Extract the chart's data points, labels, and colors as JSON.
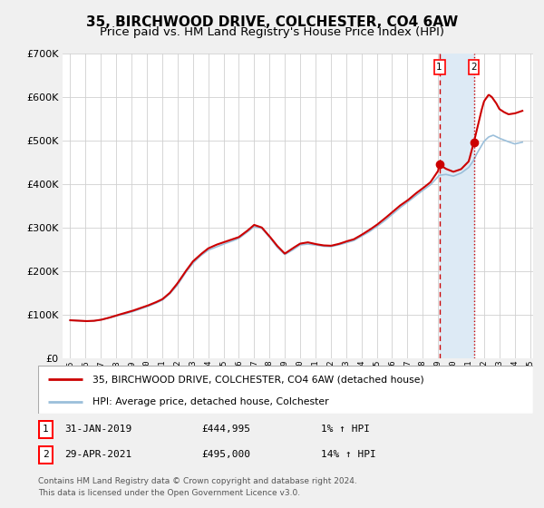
{
  "title": "35, BIRCHWOOD DRIVE, COLCHESTER, CO4 6AW",
  "subtitle": "Price paid vs. HM Land Registry's House Price Index (HPI)",
  "ylim": [
    0,
    700000
  ],
  "xlim": [
    1994.5,
    2025.2
  ],
  "yticks": [
    0,
    100000,
    200000,
    300000,
    400000,
    500000,
    600000,
    700000
  ],
  "ytick_labels": [
    "£0",
    "£100K",
    "£200K",
    "£300K",
    "£400K",
    "£500K",
    "£600K",
    "£700K"
  ],
  "hpi_color": "#9bbfda",
  "price_color": "#cc0000",
  "vspan_color": "#ddeaf5",
  "sale1_x": 2019.083,
  "sale1_y": 444995,
  "sale2_x": 2021.33,
  "sale2_y": 495000,
  "vline1_x": 2019.083,
  "vline2_x": 2021.33,
  "legend_label1": "35, BIRCHWOOD DRIVE, COLCHESTER, CO4 6AW (detached house)",
  "legend_label2": "HPI: Average price, detached house, Colchester",
  "table_row1": [
    "1",
    "31-JAN-2019",
    "£444,995",
    "1% ↑ HPI"
  ],
  "table_row2": [
    "2",
    "29-APR-2021",
    "£495,000",
    "14% ↑ HPI"
  ],
  "footer1": "Contains HM Land Registry data © Crown copyright and database right 2024.",
  "footer2": "This data is licensed under the Open Government Licence v3.0.",
  "plot_bg": "#ffffff",
  "fig_bg": "#f0f0f0",
  "grid_color": "#d0d0d0",
  "title_fontsize": 11,
  "subtitle_fontsize": 9.5
}
